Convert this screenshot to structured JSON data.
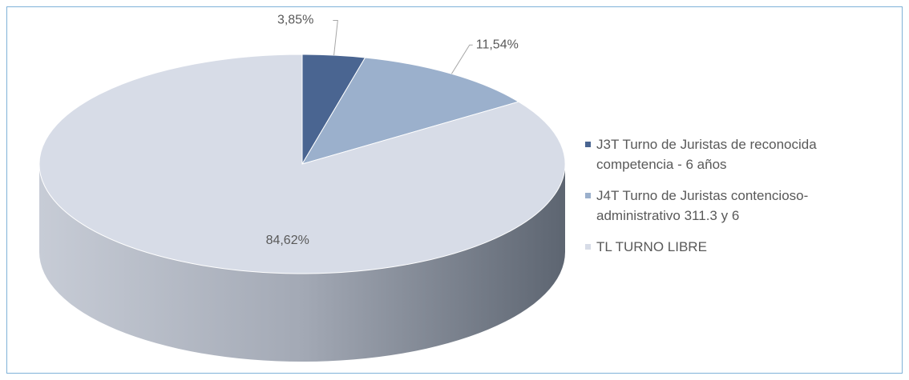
{
  "chart_data": {
    "type": "pie",
    "categories": [
      "J3T Turno de Juristas de reconocida competencia - 6 años",
      "J4T Turno de Juristas contencioso-administrativo 311.3 y 6",
      "TL TURNO LIBRE"
    ],
    "values": [
      3.85,
      11.54,
      84.62
    ],
    "value_labels": [
      "3,85%",
      "11,54%",
      "84,62%"
    ],
    "colors": [
      "#4a6591",
      "#9bb0cc",
      "#d7dce7"
    ],
    "legend": "right"
  }
}
